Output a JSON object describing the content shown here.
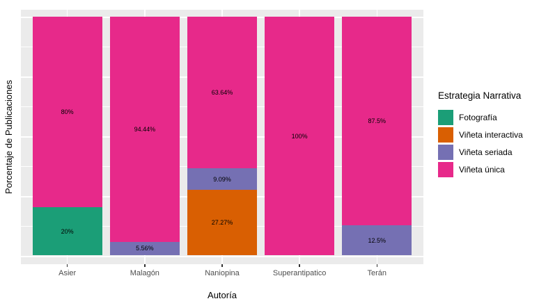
{
  "figure": {
    "background": "#FFFFFF",
    "panel_background": "#EBEBEB",
    "grid_color": "#FFFFFF",
    "tick_color": "#333333",
    "axis_text_color": "#4D4D4D"
  },
  "chart_data": {
    "type": "bar",
    "subtype": "stacked-percent-column",
    "title": "",
    "xlabel": "Autoría",
    "ylabel": "Porcentaje de Publicaciones",
    "ylim": [
      0,
      100
    ],
    "grid": true,
    "y_axis_tick_labels": [],
    "legend_position": "right",
    "legend_title": "Estrategia Narrativa",
    "categories": [
      "Asier",
      "Malagón",
      "Naniopina",
      "Superantipatico",
      "Terán"
    ],
    "series": [
      {
        "name": "Fotografía",
        "color": "#1B9E77",
        "values": [
          20,
          0,
          0,
          0,
          0
        ],
        "labels": [
          "20%",
          "",
          "",
          "",
          ""
        ]
      },
      {
        "name": "Viñeta interactiva",
        "color": "#D95F02",
        "values": [
          0,
          0,
          27.27,
          0,
          0
        ],
        "labels": [
          "",
          "",
          "27.27%",
          "",
          ""
        ]
      },
      {
        "name": "Viñeta seriada",
        "color": "#7570B3",
        "values": [
          0,
          5.56,
          9.09,
          0,
          12.5
        ],
        "labels": [
          "",
          "5.56%",
          "9.09%",
          "",
          "12.5%"
        ]
      },
      {
        "name": "Viñeta única",
        "color": "#E7298A",
        "values": [
          80,
          94.44,
          63.64,
          100,
          87.5
        ],
        "labels": [
          "80%",
          "94.44%",
          "63.64%",
          "100%",
          "87.5%"
        ]
      }
    ],
    "stack_order_bottom_to_top": [
      "Fotografía",
      "Viñeta interactiva",
      "Viñeta seriada",
      "Viñeta única"
    ]
  }
}
